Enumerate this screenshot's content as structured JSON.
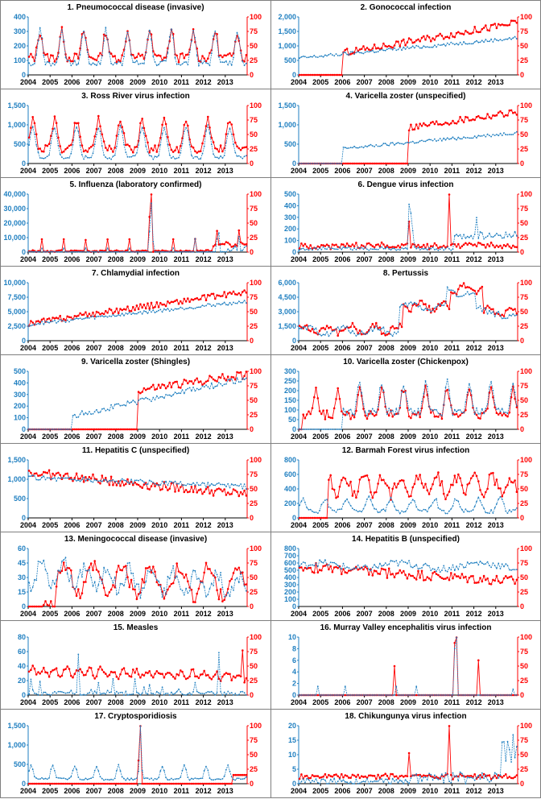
{
  "colors": {
    "blue_series": "#1f7fc0",
    "red_series": "#ff0000",
    "axis": "#000000"
  },
  "chart_data": [
    {
      "type": "line",
      "title": "1. Pneumococcal disease (invasive)",
      "x_ticks": [
        "2004",
        "2005",
        "2006",
        "2007",
        "2008",
        "2009",
        "2010",
        "2011",
        "2012",
        "2013"
      ],
      "left_axis": {
        "ticks": [
          "0",
          "100",
          "200",
          "300",
          "400"
        ],
        "ylim": [
          0,
          400
        ]
      },
      "right_axis": {
        "ticks": [
          "0",
          "25",
          "50",
          "75",
          "100"
        ],
        "ylim": [
          0,
          100
        ]
      },
      "series": [
        {
          "axis": "left",
          "profile": "seasonal_winter",
          "base": 80,
          "amp": 230,
          "start": 0,
          "noise": 20
        },
        {
          "axis": "right",
          "profile": "seasonal_winter",
          "base": 30,
          "amp": 45,
          "start": 0,
          "noise": 8
        }
      ]
    },
    {
      "type": "line",
      "title": "2. Gonococcal infection",
      "x_ticks": [
        "2004",
        "2005",
        "2006",
        "2007",
        "2008",
        "2009",
        "2010",
        "2011",
        "2012",
        "2013"
      ],
      "left_axis": {
        "ticks": [
          "0",
          "500",
          "1,000",
          "1,500",
          "2,000"
        ],
        "ylim": [
          0,
          2000
        ]
      },
      "right_axis": {
        "ticks": [
          "0",
          "25",
          "50",
          "75",
          "100"
        ],
        "ylim": [
          0,
          100
        ]
      },
      "series": [
        {
          "axis": "left",
          "profile": "trend",
          "base": 580,
          "amp": 700,
          "start": 0,
          "noise": 60
        },
        {
          "axis": "right",
          "profile": "trend",
          "base": 25,
          "amp": 65,
          "start": 24,
          "noise": 6
        }
      ]
    },
    {
      "type": "line",
      "title": "3. Ross River virus infection",
      "x_ticks": [
        "2004",
        "2005",
        "2006",
        "2007",
        "2008",
        "2009",
        "2010",
        "2011",
        "2012",
        "2013"
      ],
      "left_axis": {
        "ticks": [
          "0",
          "500",
          "1,000",
          "1,500"
        ],
        "ylim": [
          0,
          1500
        ]
      },
      "right_axis": {
        "ticks": [
          "0",
          "25",
          "50",
          "75",
          "100"
        ],
        "ylim": [
          0,
          100
        ]
      },
      "series": [
        {
          "axis": "left",
          "profile": "seasonal_summer",
          "base": 150,
          "amp": 800,
          "start": 0,
          "noise": 50
        },
        {
          "axis": "right",
          "profile": "seasonal_summer",
          "base": 25,
          "amp": 50,
          "start": 0,
          "noise": 7
        }
      ]
    },
    {
      "type": "line",
      "title": "4. Varicella zoster (unspecified)",
      "x_ticks": [
        "2004",
        "2005",
        "2006",
        "2007",
        "2008",
        "2009",
        "2010",
        "2011",
        "2012",
        "2013"
      ],
      "left_axis": {
        "ticks": [
          "0",
          "500",
          "1,000",
          "1,500"
        ],
        "ylim": [
          0,
          1500
        ]
      },
      "right_axis": {
        "ticks": [
          "0",
          "25",
          "50",
          "75",
          "100"
        ],
        "ylim": [
          0,
          100
        ]
      },
      "series": [
        {
          "axis": "left",
          "profile": "trend",
          "base": 280,
          "amp": 520,
          "start": 24,
          "noise": 40
        },
        {
          "axis": "right",
          "profile": "trend",
          "base": 35,
          "amp": 55,
          "start": 60,
          "noise": 6
        }
      ]
    },
    {
      "type": "line",
      "title": "5. Influenza (laboratory confirmed)",
      "x_ticks": [
        "2004",
        "2005",
        "2006",
        "2007",
        "2008",
        "2009",
        "2010",
        "2011",
        "2012",
        "2013"
      ],
      "left_axis": {
        "ticks": [
          "0",
          "10,000",
          "20,000",
          "30,000",
          "40,000"
        ],
        "ylim": [
          0,
          40000
        ]
      },
      "right_axis": {
        "ticks": [
          "0",
          "25",
          "50",
          "75",
          "100"
        ],
        "ylim": [
          0,
          100
        ]
      },
      "series": [
        {
          "axis": "left",
          "profile": "influenza",
          "base": 200,
          "amp": 1,
          "start": 0,
          "noise": 100
        },
        {
          "axis": "right",
          "profile": "influenza_pct",
          "base": 1,
          "amp": 1,
          "start": 0,
          "noise": 1
        }
      ]
    },
    {
      "type": "line",
      "title": "6. Dengue virus infection",
      "x_ticks": [
        "2004",
        "2005",
        "2006",
        "2007",
        "2008",
        "2009",
        "2010",
        "2011",
        "2012",
        "2013"
      ],
      "left_axis": {
        "ticks": [
          "0",
          "100",
          "200",
          "300",
          "400",
          "500"
        ],
        "ylim": [
          0,
          500
        ]
      },
      "right_axis": {
        "ticks": [
          "0",
          "25",
          "50",
          "75",
          "100"
        ],
        "ylim": [
          0,
          100
        ]
      },
      "series": [
        {
          "axis": "left",
          "profile": "dengue",
          "base": 30,
          "amp": 1,
          "start": 0,
          "noise": 15
        },
        {
          "axis": "right",
          "profile": "dengue_pct",
          "base": 10,
          "amp": 1,
          "start": 0,
          "noise": 4
        }
      ]
    },
    {
      "type": "line",
      "title": "7. Chlamydial infection",
      "x_ticks": [
        "2004",
        "2005",
        "2006",
        "2007",
        "2008",
        "2009",
        "2010",
        "2011",
        "2012",
        "2013"
      ],
      "left_axis": {
        "ticks": [
          "0",
          "2,500",
          "5,000",
          "7,500",
          "10,000"
        ],
        "ylim": [
          0,
          10000
        ]
      },
      "right_axis": {
        "ticks": [
          "0",
          "25",
          "50",
          "75",
          "100"
        ],
        "ylim": [
          0,
          100
        ]
      },
      "series": [
        {
          "axis": "left",
          "profile": "trend",
          "base": 2800,
          "amp": 4000,
          "start": 0,
          "noise": 300
        },
        {
          "axis": "right",
          "profile": "trend",
          "base": 30,
          "amp": 55,
          "start": 0,
          "noise": 5
        }
      ]
    },
    {
      "type": "line",
      "title": "8. Pertussis",
      "x_ticks": [
        "2004",
        "2005",
        "2006",
        "2007",
        "2008",
        "2009",
        "2010",
        "2011",
        "2012",
        "2013"
      ],
      "left_axis": {
        "ticks": [
          "0",
          "1,500",
          "3,000",
          "4,500",
          "6,000"
        ],
        "ylim": [
          0,
          6000
        ]
      },
      "right_axis": {
        "ticks": [
          "0",
          "25",
          "50",
          "75",
          "100"
        ],
        "ylim": [
          0,
          100
        ]
      },
      "series": [
        {
          "axis": "left",
          "profile": "pertussis",
          "base": 1,
          "amp": 1,
          "start": 0,
          "noise": 300
        },
        {
          "axis": "right",
          "profile": "pertussis_pct",
          "base": 1,
          "amp": 1,
          "start": 0,
          "noise": 6
        }
      ]
    },
    {
      "type": "line",
      "title": "9. Varicella zoster (Shingles)",
      "x_ticks": [
        "2004",
        "2005",
        "2006",
        "2007",
        "2008",
        "2009",
        "2010",
        "2011",
        "2012",
        "2013"
      ],
      "left_axis": {
        "ticks": [
          "0",
          "100",
          "200",
          "300",
          "400",
          "500"
        ],
        "ylim": [
          0,
          500
        ]
      },
      "right_axis": {
        "ticks": [
          "0",
          "25",
          "50",
          "75",
          "100"
        ],
        "ylim": [
          0,
          100
        ]
      },
      "series": [
        {
          "axis": "left",
          "profile": "trend",
          "base": 40,
          "amp": 400,
          "start": 24,
          "noise": 25
        },
        {
          "axis": "right",
          "profile": "trend",
          "base": 40,
          "amp": 55,
          "start": 60,
          "noise": 7
        }
      ]
    },
    {
      "type": "line",
      "title": "10. Varicella zoster (Chickenpox)",
      "x_ticks": [
        "2004",
        "2005",
        "2006",
        "2007",
        "2008",
        "2009",
        "2010",
        "2011",
        "2012",
        "2013"
      ],
      "left_axis": {
        "ticks": [
          "0",
          "50",
          "100",
          "150",
          "200",
          "250",
          "300"
        ],
        "ylim": [
          0,
          300
        ]
      },
      "right_axis": {
        "ticks": [
          "0",
          "25",
          "50",
          "75",
          "100"
        ],
        "ylim": [
          0,
          100
        ]
      },
      "series": [
        {
          "axis": "left",
          "profile": "seasonal_spring",
          "base": 90,
          "amp": 150,
          "start": 24,
          "noise": 20
        },
        {
          "axis": "right",
          "profile": "seasonal_spring",
          "base": 25,
          "amp": 45,
          "start": 2,
          "noise": 8
        }
      ]
    },
    {
      "type": "line",
      "title": "11. Hepatitis C (unspecified)",
      "x_ticks": [
        "2004",
        "2005",
        "2006",
        "2007",
        "2008",
        "2009",
        "2010",
        "2011",
        "2012",
        "2013"
      ],
      "left_axis": {
        "ticks": [
          "0",
          "500",
          "1,000",
          "1,500"
        ],
        "ylim": [
          0,
          1500
        ]
      },
      "right_axis": {
        "ticks": [
          "0",
          "25",
          "50",
          "75",
          "100"
        ],
        "ylim": [
          0,
          100
        ]
      },
      "series": [
        {
          "axis": "left",
          "profile": "decline",
          "base": 1050,
          "amp": -250,
          "start": 0,
          "noise": 70
        },
        {
          "axis": "right",
          "profile": "decline",
          "base": 78,
          "amp": -38,
          "start": 0,
          "noise": 8
        }
      ]
    },
    {
      "type": "line",
      "title": "12. Barmah Forest virus infection",
      "x_ticks": [
        "2004",
        "2005",
        "2006",
        "2007",
        "2008",
        "2009",
        "2010",
        "2011",
        "2012",
        "2013"
      ],
      "left_axis": {
        "ticks": [
          "0",
          "200",
          "400",
          "600",
          "800"
        ],
        "ylim": [
          0,
          800
        ]
      },
      "right_axis": {
        "ticks": [
          "0",
          "25",
          "50",
          "75",
          "100"
        ],
        "ylim": [
          0,
          100
        ]
      },
      "series": [
        {
          "axis": "left",
          "profile": "seasonal_summer",
          "base": 90,
          "amp": 180,
          "start": 0,
          "noise": 30
        },
        {
          "axis": "right",
          "profile": "barmah_pct",
          "base": 1,
          "amp": 1,
          "start": 16,
          "noise": 10
        }
      ]
    },
    {
      "type": "line",
      "title": "13. Meningococcal disease (invasive)",
      "x_ticks": [
        "2004",
        "2005",
        "2006",
        "2007",
        "2008",
        "2009",
        "2010",
        "2011",
        "2012",
        "2013"
      ],
      "left_axis": {
        "ticks": [
          "0",
          "15",
          "30",
          "45",
          "60"
        ],
        "ylim": [
          0,
          60
        ]
      },
      "right_axis": {
        "ticks": [
          "0",
          "25",
          "50",
          "75",
          "100"
        ],
        "ylim": [
          0,
          100
        ]
      },
      "series": [
        {
          "axis": "left",
          "profile": "mening",
          "base": 1,
          "amp": 1,
          "start": 0,
          "noise": 8
        },
        {
          "axis": "right",
          "profile": "mening_pct",
          "base": 1,
          "amp": 1,
          "start": 8,
          "noise": 12
        }
      ]
    },
    {
      "type": "line",
      "title": "14. Hepatitis B (unspecified)",
      "x_ticks": [
        "2004",
        "2005",
        "2006",
        "2007",
        "2008",
        "2009",
        "2010",
        "2011",
        "2012",
        "2013"
      ],
      "left_axis": {
        "ticks": [
          "0",
          "100",
          "200",
          "300",
          "400",
          "500",
          "600",
          "700",
          "800"
        ],
        "ylim": [
          0,
          800
        ]
      },
      "right_axis": {
        "ticks": [
          "0",
          "25",
          "50",
          "75",
          "100"
        ],
        "ylim": [
          0,
          100
        ]
      },
      "series": [
        {
          "axis": "left",
          "profile": "flat",
          "base": 560,
          "amp": 40,
          "start": 0,
          "noise": 50
        },
        {
          "axis": "right",
          "profile": "decline",
          "base": 68,
          "amp": -25,
          "start": 0,
          "noise": 9
        }
      ]
    },
    {
      "type": "line",
      "title": "15. Measles",
      "x_ticks": [
        "2004",
        "2005",
        "2006",
        "2007",
        "2008",
        "2009",
        "2010",
        "2011",
        "2012",
        "2013"
      ],
      "left_axis": {
        "ticks": [
          "0",
          "20",
          "40",
          "60",
          "80"
        ],
        "ylim": [
          0,
          80
        ]
      },
      "right_axis": {
        "ticks": [
          "0",
          "25",
          "50",
          "75",
          "100"
        ],
        "ylim": [
          0,
          100
        ]
      },
      "series": [
        {
          "axis": "left",
          "profile": "measles",
          "base": 1,
          "amp": 1,
          "start": 0,
          "noise": 3
        },
        {
          "axis": "right",
          "profile": "measles_pct",
          "base": 1,
          "amp": 1,
          "start": 0,
          "noise": 5
        }
      ]
    },
    {
      "type": "line",
      "title": "16. Murray Valley encephalitis virus infection",
      "x_ticks": [
        "2004",
        "2005",
        "2006",
        "2007",
        "2008",
        "2009",
        "2010",
        "2011",
        "2012",
        "2013"
      ],
      "left_axis": {
        "ticks": [
          "0",
          "2",
          "4",
          "6",
          "8",
          "10"
        ],
        "ylim": [
          0,
          10
        ]
      },
      "right_axis": {
        "ticks": [
          "0",
          "25",
          "50",
          "75",
          "100"
        ],
        "ylim": [
          0,
          100
        ]
      },
      "series": [
        {
          "axis": "left",
          "profile": "mve",
          "base": 1,
          "amp": 1,
          "start": 0,
          "noise": 0
        },
        {
          "axis": "right",
          "profile": "mve_pct",
          "base": 1,
          "amp": 1,
          "start": 0,
          "noise": 0
        }
      ]
    },
    {
      "type": "line",
      "title": "17. Cryptosporidiosis",
      "x_ticks": [
        "2004",
        "2005",
        "2006",
        "2007",
        "2008",
        "2009",
        "2010",
        "2011",
        "2012",
        "2013"
      ],
      "left_axis": {
        "ticks": [
          "0",
          "500",
          "1,000",
          "1,500"
        ],
        "ylim": [
          0,
          1500
        ]
      },
      "right_axis": {
        "ticks": [
          "0",
          "25",
          "50",
          "75",
          "100"
        ],
        "ylim": [
          0,
          100
        ]
      },
      "series": [
        {
          "axis": "left",
          "profile": "crypto",
          "base": 1,
          "amp": 1,
          "start": 0,
          "noise": 30
        },
        {
          "axis": "right",
          "profile": "crypto_pct",
          "base": 1,
          "amp": 1,
          "start": 0,
          "noise": 0
        }
      ]
    },
    {
      "type": "line",
      "title": "18. Chikungunya virus infection",
      "x_ticks": [
        "2004",
        "2005",
        "2006",
        "2007",
        "2008",
        "2009",
        "2010",
        "2011",
        "2012",
        "2013"
      ],
      "left_axis": {
        "ticks": [
          "0",
          "5",
          "10",
          "15",
          "20"
        ],
        "ylim": [
          0,
          20
        ]
      },
      "right_axis": {
        "ticks": [
          "0",
          "25",
          "50",
          "75",
          "100"
        ],
        "ylim": [
          0,
          100
        ]
      },
      "series": [
        {
          "axis": "left",
          "profile": "chik",
          "base": 1,
          "amp": 1,
          "start": 0,
          "noise": 1
        },
        {
          "axis": "right",
          "profile": "chik_pct",
          "base": 1,
          "amp": 1,
          "start": 0,
          "noise": 3
        }
      ]
    }
  ]
}
